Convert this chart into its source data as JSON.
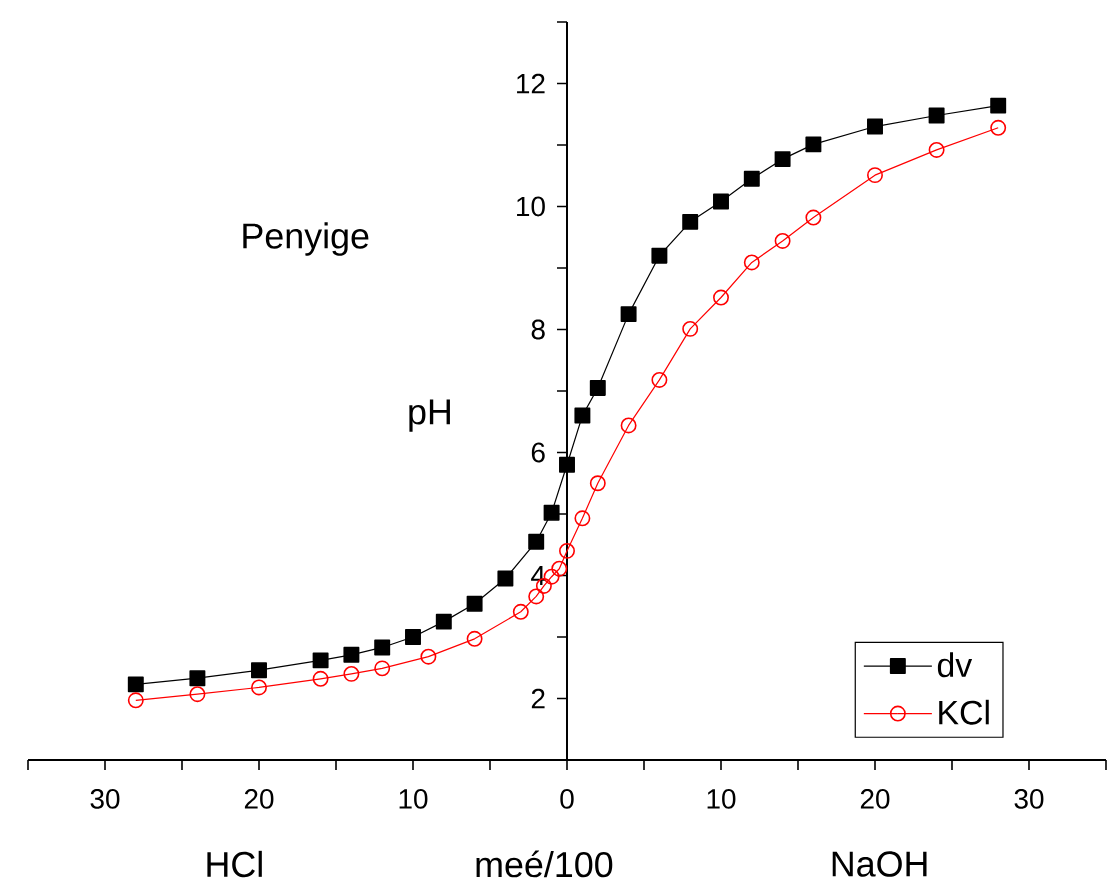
{
  "chart_data": {
    "type": "line",
    "xlabel": "meé/100",
    "ylabel": "pH",
    "annotations": [
      "Penyige",
      "HCl",
      "NaOH"
    ],
    "xlim": [
      -35,
      35
    ],
    "ylim": [
      1,
      13
    ],
    "xticks": [
      {
        "value": -35,
        "label": null
      },
      {
        "value": -30,
        "label": "30"
      },
      {
        "value": -25,
        "label": null
      },
      {
        "value": -20,
        "label": "20"
      },
      {
        "value": -15,
        "label": null
      },
      {
        "value": -10,
        "label": "10"
      },
      {
        "value": -5,
        "label": null
      },
      {
        "value": 0,
        "label": "0"
      },
      {
        "value": 5,
        "label": null
      },
      {
        "value": 10,
        "label": "10"
      },
      {
        "value": 15,
        "label": null
      },
      {
        "value": 20,
        "label": "20"
      },
      {
        "value": 25,
        "label": null
      },
      {
        "value": 30,
        "label": "30"
      },
      {
        "value": 35,
        "label": null
      }
    ],
    "yticks": [
      2,
      {
        "value": 3,
        "label": null
      },
      4,
      {
        "value": 5,
        "label": null
      },
      6,
      {
        "value": 7,
        "label": null
      },
      8,
      {
        "value": 9,
        "label": null
      },
      10,
      {
        "value": 11,
        "label": null
      },
      12,
      {
        "value": 13,
        "label": null
      }
    ],
    "legend": "bottom right",
    "grid": false,
    "line_style": "solid",
    "series": [
      {
        "name": "dv",
        "color": "#000000",
        "marker": "square",
        "x": [
          -28,
          -24,
          -20,
          -16,
          -14,
          -12,
          -10,
          -8,
          -6,
          -4,
          -2,
          -1,
          0,
          1,
          2,
          4,
          6,
          8,
          10,
          12,
          14,
          16,
          20,
          24,
          28
        ],
        "values": [
          2.23,
          2.33,
          2.46,
          2.62,
          2.71,
          2.83,
          3.0,
          3.25,
          3.54,
          3.95,
          4.55,
          5.02,
          5.8,
          6.6,
          7.05,
          8.25,
          9.2,
          9.75,
          10.08,
          10.45,
          10.77,
          11.01,
          11.3,
          11.48,
          11.64
        ]
      },
      {
        "name": "KCl",
        "color": "#ff0000",
        "marker": "circle",
        "x": [
          -28,
          -24,
          -20,
          -16,
          -14,
          -12,
          -9,
          -6,
          -3,
          -2,
          -1.5,
          -1,
          -0.5,
          0,
          1,
          2,
          4,
          6,
          8,
          10,
          12,
          14,
          16,
          20,
          24,
          28
        ],
        "values": [
          1.97,
          2.07,
          2.18,
          2.32,
          2.4,
          2.49,
          2.68,
          2.97,
          3.41,
          3.66,
          3.83,
          3.98,
          4.11,
          4.4,
          4.93,
          5.5,
          6.44,
          7.18,
          8.01,
          8.52,
          9.09,
          9.44,
          9.82,
          10.51,
          10.92,
          11.28
        ]
      }
    ]
  }
}
